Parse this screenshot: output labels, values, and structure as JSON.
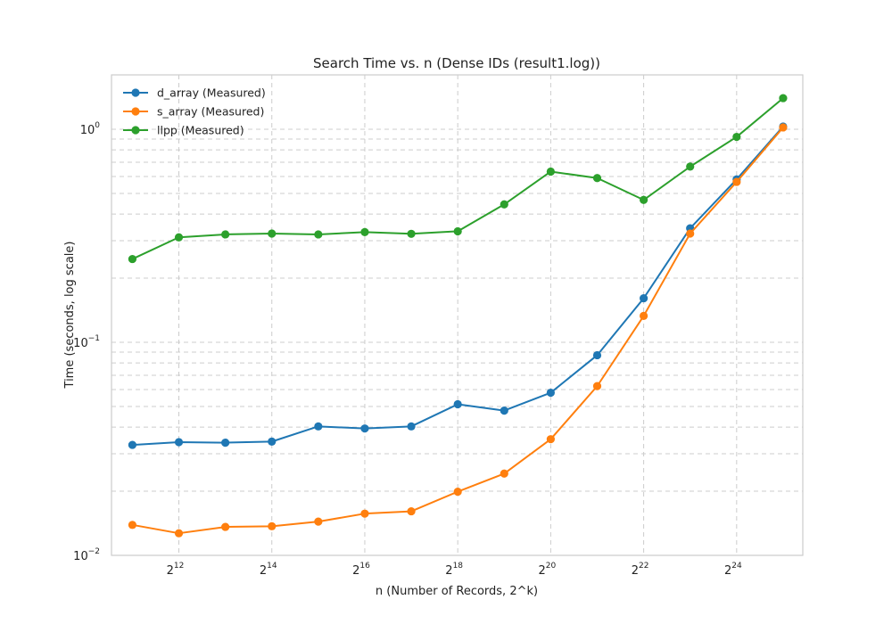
{
  "chart_data": {
    "type": "line",
    "title": "Search Time vs. n (Dense IDs (result1.log))",
    "xlabel": "n (Number of Records, 2^k)",
    "ylabel": "Time (seconds, log scale)",
    "x_scale": "log2",
    "y_scale": "log10",
    "x": [
      2048,
      4096,
      8192,
      16384,
      32768,
      65536,
      131072,
      262144,
      524288,
      1048576,
      2097152,
      4194304,
      8388608,
      16777216,
      33554432
    ],
    "x_ticks": [
      {
        "base": "2",
        "exp": "12",
        "value": 4096
      },
      {
        "base": "2",
        "exp": "14",
        "value": 16384
      },
      {
        "base": "2",
        "exp": "16",
        "value": 65536
      },
      {
        "base": "2",
        "exp": "18",
        "value": 262144
      },
      {
        "base": "2",
        "exp": "20",
        "value": 1048576
      },
      {
        "base": "2",
        "exp": "22",
        "value": 4194304
      },
      {
        "base": "2",
        "exp": "24",
        "value": 16777216
      }
    ],
    "y_ticks": [
      {
        "base": "10",
        "exp": "−2",
        "value": 0.01
      },
      {
        "base": "10",
        "exp": "−1",
        "value": 0.1
      },
      {
        "base": "10",
        "exp": "0",
        "value": 1
      }
    ],
    "xlim": [
      1500,
      45000000
    ],
    "ylim": [
      0.01,
      1.8
    ],
    "grid": true,
    "legend_position": "top-left",
    "series": [
      {
        "name": "d_array (Measured)",
        "color": "#1f77b4",
        "values": [
          0.033,
          0.034,
          0.0338,
          0.0342,
          0.0403,
          0.0394,
          0.0403,
          0.0512,
          0.0478,
          0.058,
          0.087,
          0.161,
          0.343,
          0.582,
          1.03
        ]
      },
      {
        "name": "s_array (Measured)",
        "color": "#ff7f0e",
        "values": [
          0.0139,
          0.0127,
          0.0136,
          0.0137,
          0.0144,
          0.0157,
          0.0161,
          0.0199,
          0.0242,
          0.0351,
          0.0623,
          0.133,
          0.324,
          0.566,
          1.02
        ]
      },
      {
        "name": "llpp (Measured)",
        "color": "#2ca02c",
        "values": [
          0.246,
          0.311,
          0.321,
          0.324,
          0.321,
          0.329,
          0.323,
          0.332,
          0.444,
          0.633,
          0.59,
          0.466,
          0.668,
          0.921,
          1.4
        ]
      }
    ]
  }
}
